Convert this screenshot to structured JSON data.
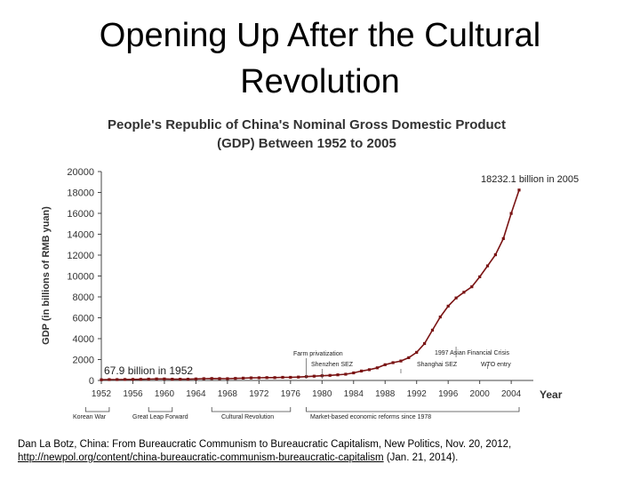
{
  "slide": {
    "title_line1": "Opening Up After the Cultural",
    "title_line2": "Revolution",
    "caption_text": "Dan La Botz, China: From Bureaucratic Communism to Bureaucratic Capitalism, New Politics, Nov. 20, 2012,",
    "caption_link": "http://newpol.org/content/china-bureaucratic-communism-bureaucratic-capitalism",
    "caption_suffix": " (Jan. 21, 2014)."
  },
  "chart_data": {
    "type": "line",
    "title_line1": "People's Republic of China's Nominal Gross Domestic Product",
    "title_line2": "(GDP) Between 1952 to 2005",
    "xlabel": "Year",
    "ylabel": "GDP (in billions of RMB yuan)",
    "xlim": [
      1952,
      2005
    ],
    "ylim": [
      0,
      20000
    ],
    "xticks": [
      "1952",
      "1956",
      "1960",
      "1964",
      "1968",
      "1972",
      "1976",
      "1980",
      "1984",
      "1988",
      "1992",
      "1996",
      "2000",
      "2004"
    ],
    "yticks": [
      "0",
      "2000",
      "4000",
      "6000",
      "8000",
      "10000",
      "12000",
      "14000",
      "16000",
      "18000",
      "20000"
    ],
    "grid": false,
    "line_color": "#7a1414",
    "x": [
      1952,
      1953,
      1954,
      1955,
      1956,
      1957,
      1958,
      1959,
      1960,
      1961,
      1962,
      1963,
      1964,
      1965,
      1966,
      1967,
      1968,
      1969,
      1970,
      1971,
      1972,
      1973,
      1974,
      1975,
      1976,
      1977,
      1978,
      1979,
      1980,
      1981,
      1982,
      1983,
      1984,
      1985,
      1986,
      1987,
      1988,
      1989,
      1990,
      1991,
      1992,
      1993,
      1994,
      1995,
      1996,
      1997,
      1998,
      1999,
      2000,
      2001,
      2002,
      2003,
      2004,
      2005
    ],
    "values": [
      67.9,
      82,
      86,
      91,
      103,
      107,
      131,
      144,
      146,
      122,
      115,
      123,
      145,
      172,
      187,
      177,
      172,
      194,
      225,
      243,
      252,
      272,
      276,
      300,
      294,
      320,
      365,
      406,
      455,
      489,
      532,
      596,
      721,
      902,
      1028,
      1206,
      1504,
      1700,
      1867,
      2178,
      2692,
      3533,
      4820,
      6079,
      7118,
      7897,
      8440,
      8968,
      9921,
      10966,
      12033,
      13582,
      15988,
      18232.1
    ],
    "annotations": {
      "start": "67.9 billion in 1952",
      "end": "18232.1 billion in 2005",
      "farm": "Farm privatization",
      "shenzhen": "Shenzhen SEZ",
      "shanghai": "Shanghai SEZ",
      "asian_crisis": "1997 Asian Financial Crisis",
      "wto": "WTO entry"
    },
    "periods": {
      "korean_war": "Korean War",
      "great_leap": "Great Leap Forward",
      "cultural_revolution": "Cultural Revolution",
      "reforms": "Market-based economic reforms since 1978"
    }
  }
}
